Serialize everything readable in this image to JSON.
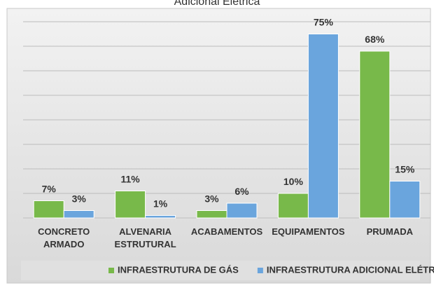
{
  "chart_data": {
    "type": "bar",
    "title": "Adicional Elétrica",
    "categories": [
      "CONCRETO ARMADO",
      "ALVENARIA ESTRUTURAL",
      "ACABAMENTOS",
      "EQUIPAMENTOS",
      "PRUMADA"
    ],
    "series": [
      {
        "name": "INFRAESTRUTURA DE GÁS",
        "color": "#78b94a",
        "values": [
          7,
          11,
          3,
          10,
          68
        ],
        "value_labels": [
          "7%",
          "11%",
          "3%",
          "10%",
          "68%"
        ]
      },
      {
        "name": "INFRAESTRUTURA ADICIONAL ELÉTRICA",
        "color": "#6aa5dd",
        "values": [
          3,
          1,
          6,
          75,
          15
        ],
        "value_labels": [
          "3%",
          "1%",
          "6%",
          "75%",
          "15%"
        ]
      }
    ],
    "ylim": [
      0,
      80
    ],
    "yticks": [
      0,
      10,
      20,
      30,
      40,
      50,
      60,
      70,
      80
    ],
    "grid": true
  }
}
